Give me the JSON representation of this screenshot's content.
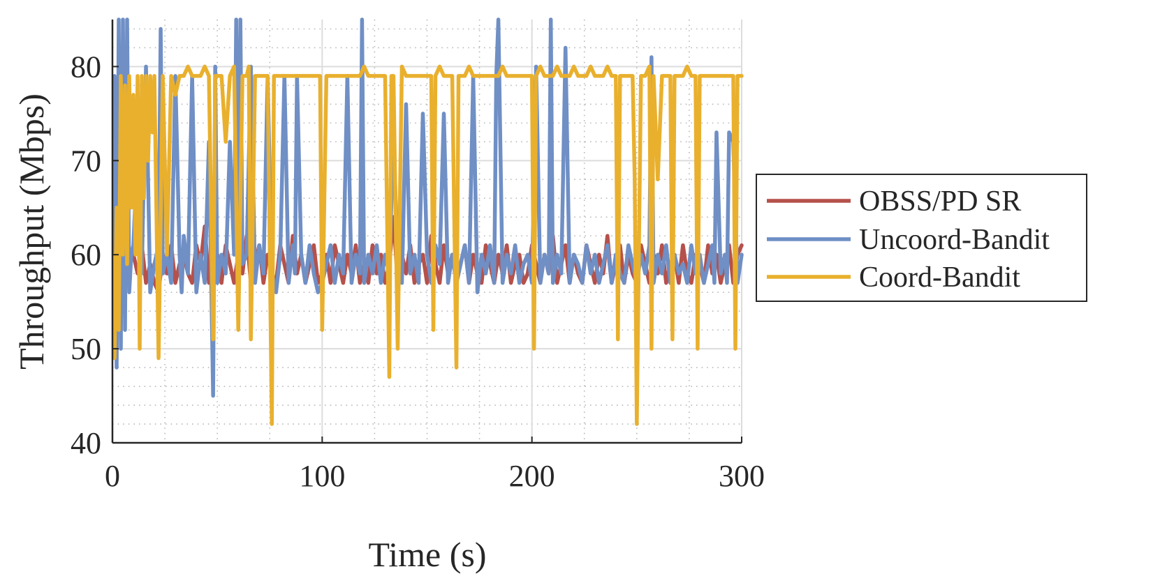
{
  "chart_data": {
    "type": "line",
    "title": "",
    "xlabel": "Time (s)",
    "ylabel": "Throughput (Mbps)",
    "xlim": [
      0,
      300
    ],
    "ylim": [
      40,
      85
    ],
    "x_ticks": [
      0,
      100,
      200,
      300
    ],
    "y_ticks": [
      40,
      50,
      60,
      70,
      80
    ],
    "grid": "major solid, minor dotted",
    "legend_placement": "outside-right",
    "legend": [
      "OBSS/PD SR",
      "Uncoord-Bandit",
      "Coord-Bandit"
    ],
    "series": [
      {
        "name": "OBSS/PD SR",
        "color": "#B5514B",
        "x": [
          0,
          2,
          4,
          6,
          8,
          10,
          12,
          14,
          16,
          18,
          20,
          22,
          24,
          26,
          28,
          30,
          32,
          34,
          36,
          38,
          40,
          42,
          44,
          46,
          48,
          50,
          52,
          54,
          56,
          58,
          60,
          62,
          64,
          66,
          68,
          70,
          72,
          74,
          76,
          78,
          80,
          82,
          84,
          86,
          88,
          90,
          92,
          94,
          96,
          98,
          100,
          102,
          104,
          106,
          108,
          110,
          112,
          114,
          116,
          118,
          120,
          122,
          124,
          126,
          128,
          130,
          132,
          134,
          136,
          138,
          140,
          142,
          144,
          146,
          148,
          150,
          152,
          154,
          156,
          158,
          160,
          162,
          164,
          166,
          168,
          170,
          172,
          174,
          176,
          178,
          180,
          182,
          184,
          186,
          188,
          190,
          192,
          194,
          196,
          198,
          200,
          202,
          204,
          206,
          208,
          210,
          212,
          214,
          216,
          218,
          220,
          222,
          224,
          226,
          228,
          230,
          232,
          234,
          236,
          238,
          240,
          242,
          244,
          246,
          248,
          250,
          252,
          254,
          256,
          258,
          260,
          262,
          264,
          266,
          268,
          270,
          272,
          274,
          276,
          278,
          280,
          282,
          284,
          286,
          288,
          290,
          292,
          294,
          296,
          298,
          300
        ],
        "y": [
          60,
          58,
          61,
          57,
          59,
          60,
          58,
          61,
          57,
          59,
          57,
          56,
          60,
          58,
          61,
          57,
          59,
          60,
          58,
          57,
          61,
          59,
          63,
          57,
          58,
          60,
          57,
          61,
          59,
          57,
          60,
          58,
          62,
          57,
          59,
          61,
          57,
          60,
          58,
          57,
          61,
          59,
          57,
          62,
          58,
          60,
          57,
          59,
          61,
          57,
          58,
          60,
          57,
          61,
          59,
          57,
          60,
          58,
          61,
          57,
          59,
          57,
          61,
          58,
          60,
          57,
          59,
          64,
          57,
          60,
          58,
          61,
          57,
          59,
          60,
          57,
          62,
          59,
          57,
          61,
          58,
          60,
          57,
          59,
          61,
          57,
          60,
          58,
          57,
          61,
          59,
          57,
          60,
          58,
          61,
          57,
          59,
          60,
          57,
          58,
          61,
          59,
          57,
          60,
          58,
          62,
          57,
          59,
          61,
          57,
          60,
          58,
          57,
          61,
          59,
          57,
          60,
          58,
          62,
          57,
          59,
          61,
          57,
          60,
          58,
          57,
          61,
          59,
          57,
          60,
          58,
          61,
          57,
          59,
          60,
          57,
          61,
          58,
          57,
          60,
          59,
          57,
          61,
          58,
          60,
          57,
          59,
          61,
          57,
          60,
          61
        ]
      },
      {
        "name": "Uncoord-Bandit",
        "color": "#6F8FC5",
        "x": [
          0,
          1,
          2,
          3,
          4,
          5,
          6,
          7,
          8,
          9,
          10,
          12,
          14,
          16,
          18,
          20,
          22,
          23,
          24,
          26,
          28,
          30,
          32,
          33,
          34,
          36,
          38,
          40,
          42,
          44,
          46,
          48,
          49,
          50,
          52,
          54,
          56,
          58,
          59,
          60,
          61,
          62,
          64,
          66,
          68,
          70,
          72,
          74,
          76,
          78,
          80,
          82,
          84,
          86,
          87,
          88,
          90,
          92,
          94,
          96,
          98,
          100,
          102,
          104,
          106,
          108,
          110,
          112,
          114,
          116,
          118,
          119,
          120,
          122,
          124,
          126,
          128,
          130,
          132,
          134,
          136,
          138,
          140,
          142,
          144,
          146,
          148,
          150,
          152,
          154,
          156,
          158,
          160,
          162,
          164,
          166,
          168,
          170,
          172,
          174,
          176,
          178,
          180,
          182,
          183,
          184,
          186,
          188,
          190,
          192,
          194,
          196,
          198,
          200,
          202,
          204,
          206,
          208,
          209,
          210,
          212,
          214,
          216,
          218,
          220,
          222,
          224,
          226,
          228,
          230,
          232,
          234,
          236,
          238,
          240,
          242,
          244,
          246,
          248,
          250,
          252,
          254,
          256,
          257,
          258,
          260,
          262,
          264,
          266,
          268,
          270,
          272,
          274,
          276,
          278,
          280,
          282,
          284,
          286,
          287,
          288,
          290,
          292,
          293,
          294,
          296,
          298,
          300
        ],
        "y": [
          60,
          79,
          48,
          85,
          50,
          85,
          52,
          85,
          56,
          60,
          61,
          72,
          58,
          80,
          56,
          59,
          61,
          84,
          58,
          60,
          57,
          79,
          60,
          56,
          62,
          58,
          79,
          56,
          60,
          57,
          72,
          45,
          80,
          57,
          60,
          58,
          72,
          60,
          85,
          57,
          85,
          59,
          60,
          80,
          57,
          61,
          58,
          79,
          58,
          56,
          60,
          79,
          57,
          61,
          58,
          79,
          60,
          57,
          61,
          58,
          56,
          57,
          59,
          61,
          57,
          60,
          58,
          79,
          57,
          60,
          58,
          85,
          57,
          60,
          58,
          61,
          57,
          60,
          58,
          73,
          59,
          57,
          76,
          58,
          60,
          57,
          75,
          60,
          57,
          61,
          59,
          75,
          57,
          60,
          57,
          59,
          61,
          57,
          79,
          56,
          60,
          58,
          61,
          57,
          79,
          85,
          57,
          60,
          58,
          61,
          57,
          59,
          60,
          57,
          80,
          57,
          60,
          58,
          85,
          57,
          60,
          58,
          82,
          57,
          60,
          59,
          57,
          61,
          58,
          60,
          57,
          59,
          61,
          57,
          60,
          58,
          57,
          61,
          59,
          57,
          60,
          58,
          61,
          81,
          57,
          60,
          58,
          61,
          57,
          60,
          58,
          59,
          57,
          61,
          58,
          60,
          57,
          59,
          61,
          57,
          73,
          58,
          60,
          57,
          73,
          72,
          57,
          60
        ]
      },
      {
        "name": "Coord-Bandit",
        "color": "#E9B02E",
        "x": [
          0,
          1,
          2,
          3,
          4,
          5,
          6,
          7,
          8,
          9,
          10,
          11,
          12,
          13,
          14,
          15,
          16,
          17,
          18,
          19,
          20,
          22,
          24,
          26,
          28,
          30,
          32,
          34,
          36,
          38,
          40,
          42,
          44,
          46,
          48,
          49,
          50,
          52,
          54,
          56,
          58,
          60,
          62,
          64,
          65,
          66,
          68,
          70,
          72,
          74,
          76,
          77,
          78,
          80,
          82,
          84,
          86,
          88,
          90,
          92,
          94,
          96,
          98,
          99,
          100,
          102,
          104,
          106,
          108,
          110,
          112,
          114,
          116,
          118,
          120,
          122,
          124,
          126,
          128,
          130,
          132,
          133,
          134,
          136,
          138,
          140,
          142,
          144,
          146,
          148,
          150,
          152,
          153,
          154,
          156,
          158,
          160,
          162,
          164,
          165,
          166,
          168,
          170,
          172,
          174,
          176,
          178,
          180,
          182,
          184,
          186,
          188,
          190,
          200,
          201,
          202,
          204,
          206,
          208,
          210,
          212,
          214,
          216,
          218,
          220,
          222,
          224,
          226,
          228,
          230,
          232,
          234,
          236,
          238,
          240,
          241,
          242,
          244,
          246,
          247,
          248,
          249,
          250,
          252,
          254,
          256,
          257,
          258,
          260,
          262,
          264,
          266,
          267,
          268,
          270,
          272,
          274,
          276,
          278,
          279,
          280,
          282,
          284,
          286,
          288,
          290,
          292,
          294,
          296,
          297,
          298,
          300
        ],
        "y": [
          60,
          49,
          65,
          52,
          79,
          60,
          78,
          59,
          79,
          65,
          77,
          60,
          79,
          50,
          79,
          66,
          79,
          70,
          79,
          73,
          79,
          49,
          79,
          60,
          79,
          77,
          79,
          79,
          80,
          79,
          79,
          79,
          80,
          79,
          51,
          79,
          79,
          79,
          72,
          79,
          80,
          52,
          79,
          79,
          80,
          51,
          79,
          79,
          79,
          79,
          42,
          79,
          79,
          79,
          79,
          79,
          79,
          79,
          79,
          79,
          79,
          79,
          79,
          79,
          52,
          79,
          79,
          79,
          79,
          79,
          79,
          79,
          79,
          79,
          80,
          79,
          79,
          79,
          79,
          79,
          47,
          79,
          79,
          50,
          80,
          79,
          79,
          79,
          79,
          79,
          79,
          79,
          52,
          79,
          80,
          79,
          79,
          79,
          48,
          79,
          79,
          79,
          80,
          79,
          79,
          79,
          79,
          79,
          79,
          79,
          80,
          79,
          79,
          79,
          50,
          79,
          80,
          79,
          79,
          79,
          80,
          79,
          79,
          79,
          80,
          79,
          79,
          79,
          80,
          79,
          79,
          79,
          80,
          79,
          79,
          51,
          79,
          79,
          79,
          79,
          79,
          68,
          42,
          79,
          79,
          80,
          50,
          79,
          68,
          79,
          79,
          79,
          51,
          79,
          79,
          79,
          80,
          79,
          79,
          50,
          79,
          79,
          79,
          79,
          79,
          79,
          79,
          79,
          79,
          50,
          79,
          79
        ]
      }
    ]
  }
}
